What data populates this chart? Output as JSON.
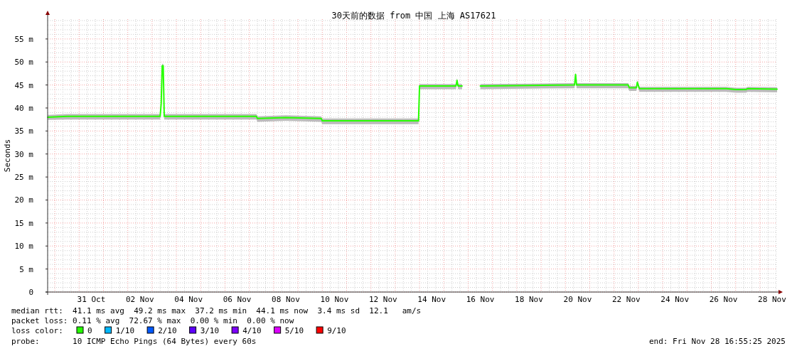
{
  "chart_data": {
    "type": "line",
    "title": "30天前的数据 from 中国 上海 AS17621",
    "ylabel": "Seconds",
    "xlim": [
      "2025-10-29T16:55",
      "2025-11-28T16:55"
    ],
    "xticks": [
      {
        "value": "2025-10-31T12:00",
        "label": "31 Oct"
      },
      {
        "value": "2025-11-02T12:00",
        "label": "02 Nov"
      },
      {
        "value": "2025-11-04T12:00",
        "label": "04 Nov"
      },
      {
        "value": "2025-11-06T12:00",
        "label": "06 Nov"
      },
      {
        "value": "2025-11-08T12:00",
        "label": "08 Nov"
      },
      {
        "value": "2025-11-10T12:00",
        "label": "10 Nov"
      },
      {
        "value": "2025-11-12T12:00",
        "label": "12 Nov"
      },
      {
        "value": "2025-11-14T12:00",
        "label": "14 Nov"
      },
      {
        "value": "2025-11-16T12:00",
        "label": "16 Nov"
      },
      {
        "value": "2025-11-18T12:00",
        "label": "18 Nov"
      },
      {
        "value": "2025-11-20T12:00",
        "label": "20 Nov"
      },
      {
        "value": "2025-11-22T12:00",
        "label": "22 Nov"
      },
      {
        "value": "2025-11-24T12:00",
        "label": "24 Nov"
      },
      {
        "value": "2025-11-26T12:00",
        "label": "26 Nov"
      },
      {
        "value": "2025-11-28T12:00",
        "label": "28 Nov"
      }
    ],
    "ylim": [
      0,
      59.3
    ],
    "yticks": [
      0,
      {
        "value": 5,
        "label": "5 m"
      },
      {
        "value": 10,
        "label": "10 m"
      },
      {
        "value": 15,
        "label": "15 m"
      },
      {
        "value": 20,
        "label": "20 m"
      },
      {
        "value": 25,
        "label": "25 m"
      },
      {
        "value": 30,
        "label": "30 m"
      },
      {
        "value": 35,
        "label": "35 m"
      },
      {
        "value": 40,
        "label": "40 m"
      },
      {
        "value": 45,
        "label": "45 m"
      },
      {
        "value": 50,
        "label": "50 m"
      },
      {
        "value": 55,
        "label": "55 m"
      }
    ],
    "grid": true,
    "legend": "bottom",
    "legend_title": "loss color:",
    "series": [
      {
        "name": "0",
        "color": "#26ff00",
        "x": [
          "2025-10-29T17:00",
          "2025-10-30T12:00",
          "2025-11-01T12:00",
          "2025-11-03T08:00",
          "2025-11-03T09:00",
          "2025-11-03T10:00",
          "2025-11-03T11:00",
          "2025-11-03T12:00",
          "2025-11-05T12:00",
          "2025-11-07T07:00",
          "2025-11-07T08:00",
          "2025-11-08T12:00",
          "2025-11-09T23:00",
          "2025-11-10T00:00",
          "2025-11-12T00:00",
          "2025-11-13T23:00",
          "2025-11-14T00:00",
          "2025-11-15T12:00",
          "2025-11-15T13:00",
          "2025-11-15T14:00",
          "2025-11-15T18:00",
          "2025-11-16T00:00",
          "2025-11-16T12:00",
          "2025-11-18T12:00",
          "2025-11-20T09:00",
          "2025-11-20T10:00",
          "2025-11-20T11:00",
          "2025-11-22T14:00",
          "2025-11-22T15:00",
          "2025-11-22T22:00",
          "2025-11-22T23:00",
          "2025-11-23T01:00",
          "2025-11-25T00:00",
          "2025-11-26T15:00",
          "2025-11-27T00:00",
          "2025-11-27T10:00",
          "2025-11-27T12:00",
          "2025-11-28T16:55"
        ],
        "values": [
          38.0,
          38.2,
          38.2,
          38.2,
          41.0,
          49.2,
          49.2,
          38.2,
          38.2,
          38.2,
          37.7,
          37.9,
          37.7,
          37.2,
          37.2,
          37.2,
          44.8,
          44.8,
          46.0,
          44.8,
          44.8,
          null,
          44.8,
          44.9,
          45.0,
          47.3,
          45.0,
          45.0,
          44.4,
          44.4,
          45.6,
          44.2,
          44.2,
          44.2,
          44.0,
          44.0,
          44.2,
          44.1
        ],
        "lower": [
          37.4,
          37.5,
          37.5,
          37.5,
          40.5,
          48.8,
          48.8,
          37.5,
          37.5,
          37.5,
          37.0,
          37.2,
          37.0,
          36.5,
          36.5,
          36.5,
          44.1,
          44.1,
          45.5,
          44.1,
          44.1,
          null,
          44.1,
          44.2,
          44.3,
          46.8,
          44.3,
          44.3,
          43.7,
          43.7,
          45.0,
          43.5,
          43.5,
          43.5,
          43.3,
          43.3,
          43.5,
          43.4
        ],
        "upper": [
          38.5,
          38.7,
          38.7,
          38.7,
          41.5,
          49.6,
          49.6,
          38.7,
          38.7,
          38.7,
          38.2,
          38.4,
          38.2,
          37.7,
          37.7,
          37.7,
          45.2,
          45.2,
          46.5,
          45.2,
          45.2,
          null,
          45.2,
          45.3,
          45.4,
          47.8,
          45.4,
          45.4,
          44.8,
          44.8,
          46.0,
          44.6,
          44.6,
          44.6,
          44.4,
          44.4,
          44.6,
          44.5
        ]
      },
      {
        "name": "1/10",
        "color": "#00b8ff"
      },
      {
        "name": "2/10",
        "color": "#0059ff"
      },
      {
        "name": "3/10",
        "color": "#5e00ff"
      },
      {
        "name": "4/10",
        "color": "#7e00ff"
      },
      {
        "name": "5/10",
        "color": "#dd00ff"
      },
      {
        "name": "9/10",
        "color": "#ff0000"
      }
    ],
    "annotations": [
      "median rtt:  41.1 ms avg  49.2 ms max  37.2 ms min  44.1 ms now  3.4 ms sd  12.1   am/s",
      "packet loss: 0.11 % avg  72.67 % max  0.00 % min  0.00 % now",
      "probe:       10 ICMP Echo Pings (64 Bytes) every 60s",
      "end: Fri Nov 28 16:55:25 2025"
    ]
  }
}
